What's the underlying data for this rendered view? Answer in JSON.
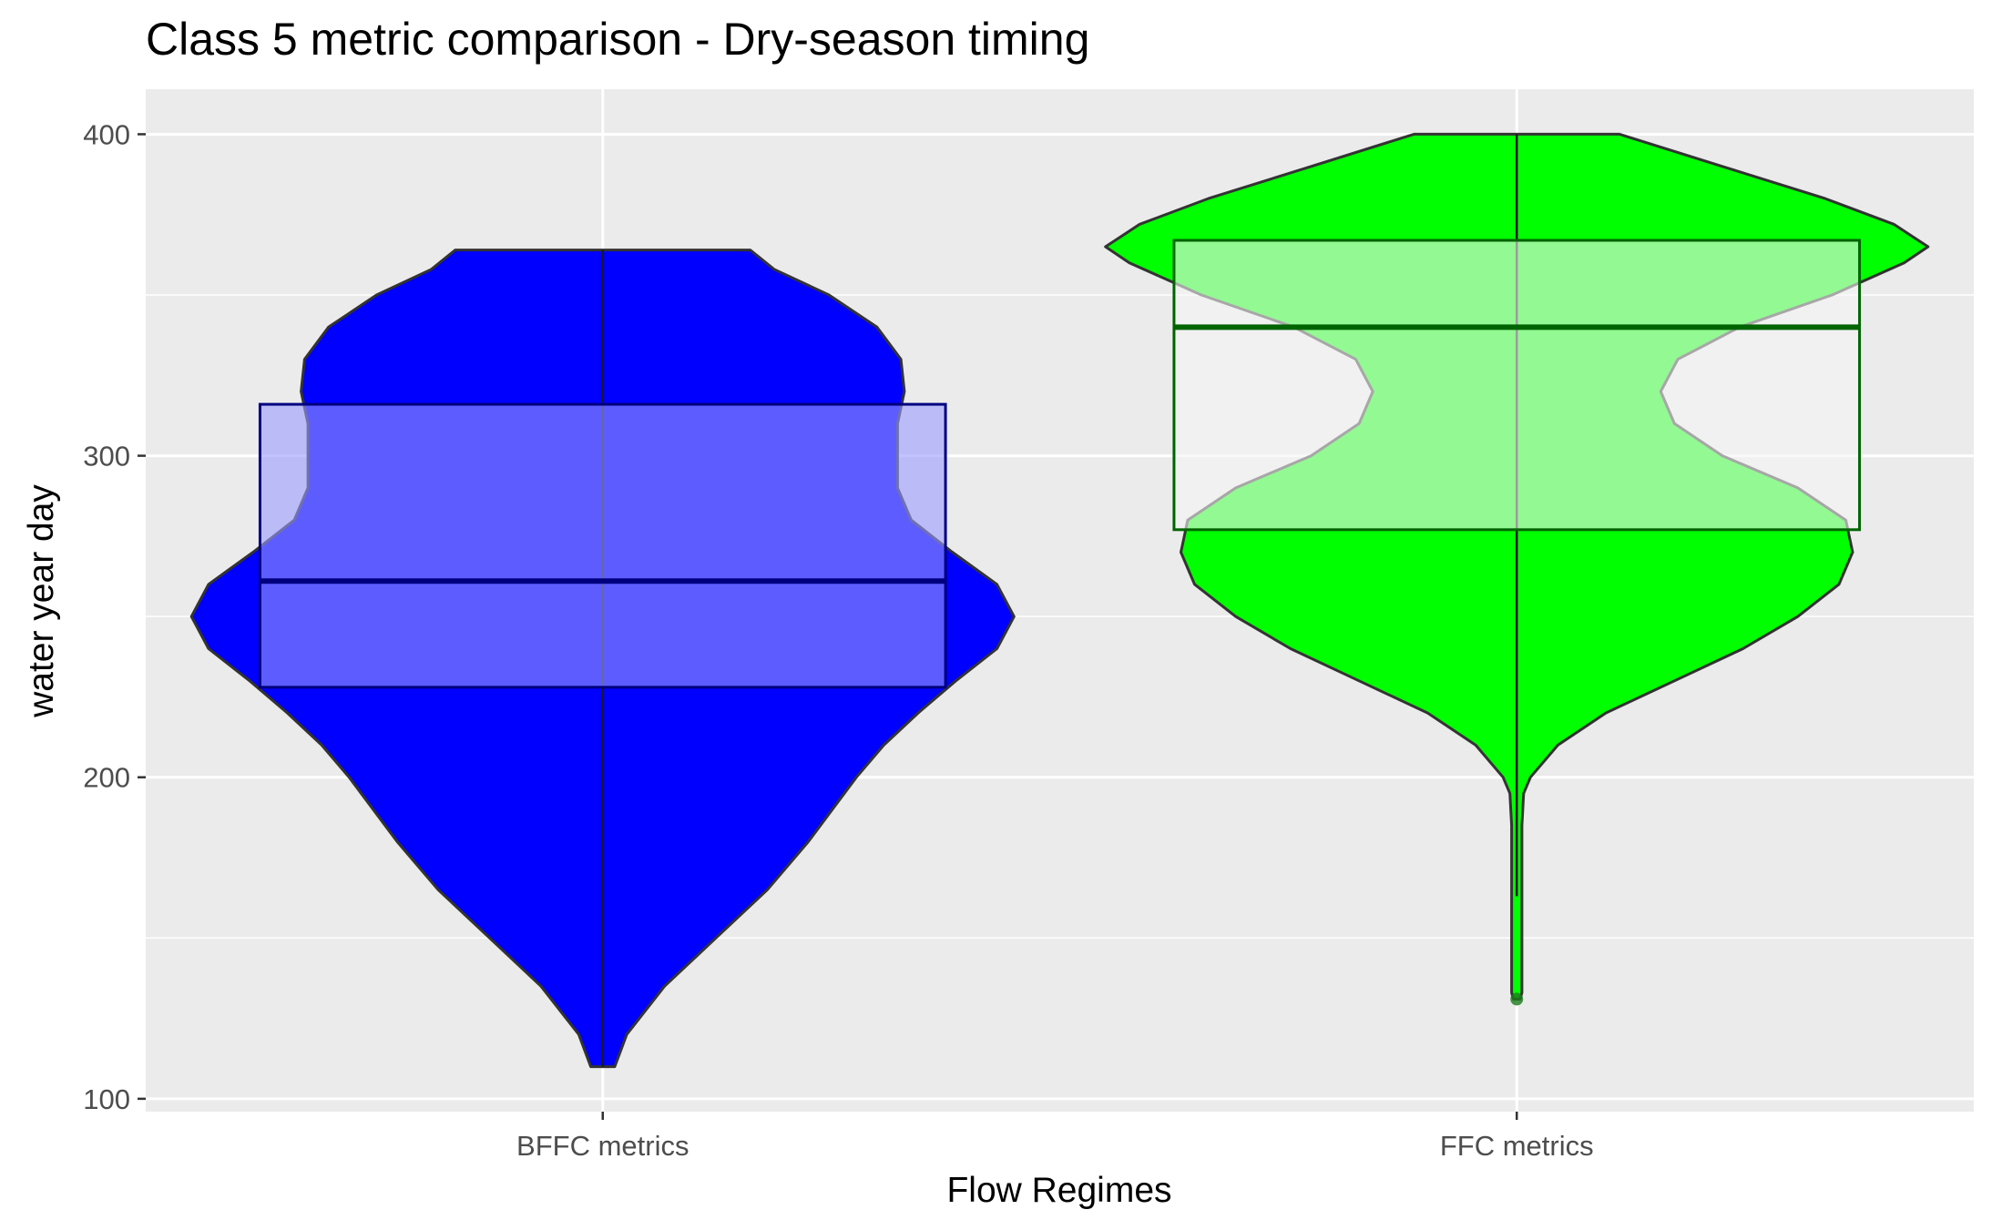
{
  "chart_data": {
    "type": "violin",
    "title": "Class 5 metric comparison - Dry-season timing",
    "xlabel": "Flow Regimes",
    "ylabel": "water year day",
    "ylim": [
      96,
      414
    ],
    "yticks": [
      100,
      200,
      300,
      400
    ],
    "categories": [
      "BFFC metrics",
      "FFC metrics"
    ],
    "grid": true,
    "legend": "none",
    "series": [
      {
        "category": "BFFC metrics",
        "fill_color": "#0000ff",
        "box_fill_color": "#9b9bff",
        "box_line_color": "#00007f",
        "min": 110,
        "q1": 228,
        "median": 261,
        "q3": 316,
        "max": 364,
        "density_profile": [
          [
            110,
            0.035
          ],
          [
            120,
            0.07
          ],
          [
            135,
            0.18
          ],
          [
            150,
            0.33
          ],
          [
            165,
            0.48
          ],
          [
            180,
            0.6
          ],
          [
            190,
            0.67
          ],
          [
            200,
            0.74
          ],
          [
            210,
            0.82
          ],
          [
            220,
            0.92
          ],
          [
            230,
            1.03
          ],
          [
            240,
            1.15
          ],
          [
            250,
            1.2
          ],
          [
            260,
            1.15
          ],
          [
            270,
            1.02
          ],
          [
            280,
            0.9
          ],
          [
            290,
            0.86
          ],
          [
            300,
            0.86
          ],
          [
            310,
            0.86
          ],
          [
            320,
            0.88
          ],
          [
            330,
            0.87
          ],
          [
            340,
            0.8
          ],
          [
            350,
            0.66
          ],
          [
            358,
            0.5
          ],
          [
            364,
            0.43
          ]
        ]
      },
      {
        "category": "FFC metrics",
        "fill_color": "#00ff00",
        "box_fill_color": "#f5f5f5",
        "box_line_color": "#006400",
        "min": 163,
        "q1": 277,
        "median": 340,
        "q3": 367,
        "max": 400,
        "outliers": [
          131
        ],
        "density_profile": [
          [
            131,
            0.01
          ],
          [
            133,
            0.015
          ],
          [
            145,
            0.015
          ],
          [
            160,
            0.015
          ],
          [
            175,
            0.015
          ],
          [
            185,
            0.015
          ],
          [
            195,
            0.02
          ],
          [
            200,
            0.04
          ],
          [
            210,
            0.12
          ],
          [
            220,
            0.26
          ],
          [
            230,
            0.46
          ],
          [
            240,
            0.66
          ],
          [
            250,
            0.82
          ],
          [
            260,
            0.94
          ],
          [
            270,
            0.98
          ],
          [
            280,
            0.96
          ],
          [
            290,
            0.82
          ],
          [
            300,
            0.6
          ],
          [
            310,
            0.46
          ],
          [
            320,
            0.42
          ],
          [
            330,
            0.47
          ],
          [
            340,
            0.65
          ],
          [
            350,
            0.92
          ],
          [
            360,
            1.13
          ],
          [
            365,
            1.2
          ],
          [
            372,
            1.1
          ],
          [
            380,
            0.9
          ],
          [
            390,
            0.6
          ],
          [
            400,
            0.3
          ]
        ]
      }
    ]
  }
}
